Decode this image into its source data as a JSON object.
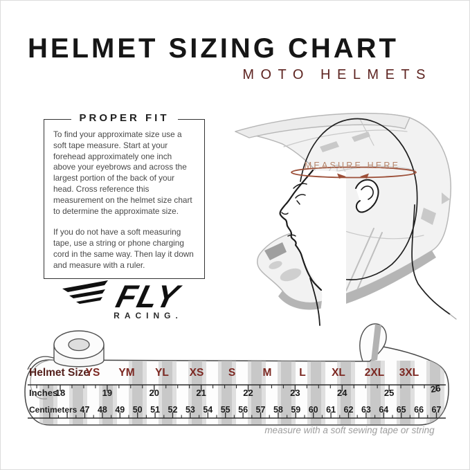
{
  "header": {
    "title": "HELMET SIZING CHART",
    "subtitle": "MOTO HELMETS"
  },
  "proper_fit": {
    "title": "PROPER FIT",
    "paragraphs": [
      "To find your approximate size use a soft tape measure. Start at your forehead approximately one inch above your eyebrows and across the largest portion of the back of your head. Cross reference this measurement on the helmet size chart to determine the approximate size.",
      "If you do not have a soft measuring tape, use a string or phone charging cord in the same way. Then lay it down and measure with a ruler."
    ]
  },
  "brand": {
    "name": "FLY",
    "tagline": "RACING."
  },
  "illustration": {
    "measure_label": "MEASURE HERE"
  },
  "chart_data": {
    "type": "table",
    "title": "Helmet Sizing Chart",
    "rows": [
      {
        "label": "Helmet Size",
        "values": [
          "YS",
          "YM",
          "YL",
          "XS",
          "S",
          "M",
          "L",
          "XL",
          "2XL",
          "3XL"
        ]
      },
      {
        "label": "Inches",
        "values": [
          18,
          19,
          20,
          21,
          22,
          23,
          24,
          25,
          26
        ]
      },
      {
        "label": "Centimeters",
        "values": [
          47,
          48,
          49,
          50,
          51,
          52,
          53,
          54,
          55,
          56,
          57,
          58,
          59,
          60,
          61,
          62,
          63,
          64,
          65,
          66,
          67
        ]
      }
    ],
    "note": "measure with a soft sewing tape or string"
  },
  "colors": {
    "title": "#161616",
    "subtitle_maroon": "#5e2421",
    "size_maroon": "#7c2822",
    "size_label_maroon": "#54201c",
    "measure_brown": "#9c4f38",
    "measure_label_brown": "#b5846a",
    "note_gray": "#9d9d9d"
  }
}
